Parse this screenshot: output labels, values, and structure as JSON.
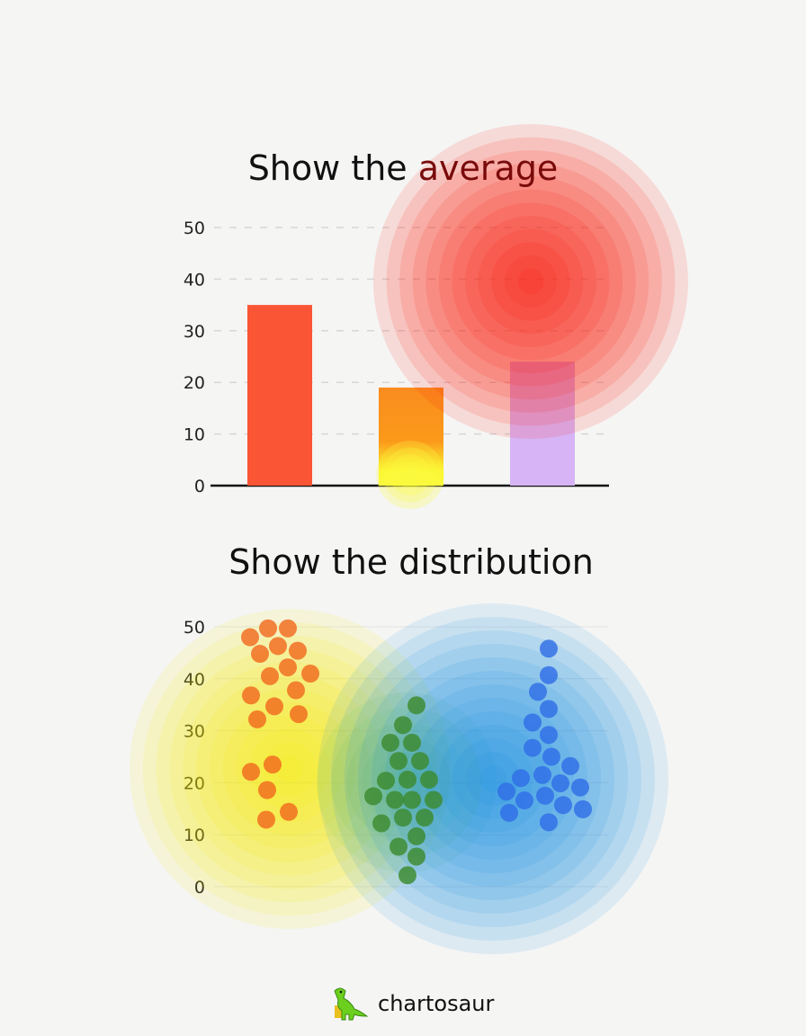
{
  "chart_data": [
    {
      "type": "bar",
      "title": "Show the average",
      "title_highlight": "average",
      "categories": [
        "",
        "",
        ""
      ],
      "values": [
        35,
        19,
        24
      ],
      "colors": [
        "#fa5535",
        "#fa8c1e",
        "#d6b4f5"
      ],
      "ylim": [
        0,
        50
      ],
      "yticks": [
        0,
        10,
        20,
        30,
        40,
        50
      ],
      "grid": true,
      "highlight_glow": {
        "color": "#ff1a0a",
        "center_value": [
          2.7,
          40
        ]
      }
    },
    {
      "type": "scatter",
      "subtype": "beeswarm",
      "title": "Show the distribution",
      "ylim": [
        0,
        50
      ],
      "yticks": [
        0,
        10,
        20,
        30,
        40,
        50
      ],
      "grid": true,
      "series": [
        {
          "color": "#f26a1e",
          "glow": "#f5f000",
          "values": [
            48.0,
            49.7,
            49.7,
            44.8,
            46.3,
            45.4,
            40.5,
            42.2,
            41.0,
            36.8,
            37.8,
            34.7,
            32.2,
            33.2,
            22.1,
            23.5,
            18.6,
            12.9,
            14.4
          ]
        },
        {
          "color": "#3c8a2e",
          "glow": "#5ccf3a",
          "values": [
            34.9,
            31.1,
            27.7,
            27.7,
            24.2,
            24.2,
            20.4,
            20.6,
            20.6,
            17.4,
            16.7,
            16.7,
            16.7,
            12.2,
            13.3,
            13.3,
            9.7,
            7.7,
            5.8,
            2.2
          ]
        },
        {
          "color": "#2f6ee6",
          "glow": "#0a86e0",
          "values": [
            45.8,
            40.7,
            37.5,
            34.2,
            31.6,
            29.2,
            26.7,
            25.0,
            23.2,
            21.5,
            20.9,
            19.9,
            19.1,
            18.3,
            17.5,
            16.6,
            15.7,
            14.9,
            14.2,
            12.4
          ]
        }
      ]
    }
  ],
  "brand": {
    "name": "chartosaur",
    "icon": "dinosaur-icon"
  }
}
